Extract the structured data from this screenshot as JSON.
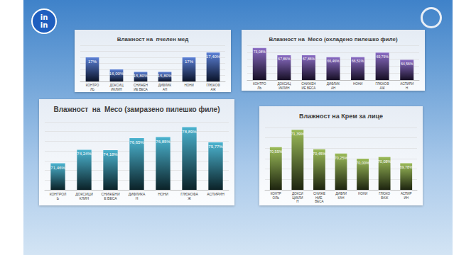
{
  "logo": [
    "in",
    "in"
  ],
  "chart_data": [
    {
      "type": "bar",
      "title": "Влажност на  пчелен мед",
      "categories": [
        "КОНТРОЛЬ",
        "ДОКСИЦИКЛИН",
        "СНИЖЕНИЕ ВЕСА",
        "ДИФЛИКАН",
        "НОНИ",
        "ГЛЮКОФАЖ"
      ],
      "values": [
        17,
        16,
        15.8,
        15.8,
        17,
        17.4
      ],
      "value_labels": [
        "17%",
        "16,00%",
        "15,80%",
        "15,80%",
        "17%",
        "17,40%"
      ],
      "color": "#5b80d6",
      "ylim": [
        15,
        18
      ],
      "yticks": [
        15,
        15.5,
        16,
        16.5,
        17,
        17.5,
        18
      ],
      "grid": true,
      "data_labels": true,
      "tick_labels": "x"
    },
    {
      "type": "bar",
      "title": "Влажност на  Месо (охладено пилешко филе)",
      "categories": [
        "КОНТРОЛЬ",
        "ДОКСИЦИКЛИН",
        "СНИЖЕНИЕ ВЕСА",
        "ДИФЛИКАН",
        "НОНИ",
        "ГЛЮКОФАЖ",
        "АСПИРИН"
      ],
      "values": [
        73.08,
        67.86,
        67.86,
        66.46,
        66.51,
        69.75,
        64.56
      ],
      "value_labels": [
        "73,08%",
        "67,86%",
        "67,86%",
        "66,46%",
        "66,51%",
        "69,75%",
        "64,56%"
      ],
      "color": "#8a6cc4",
      "ylim": [
        50,
        75
      ],
      "yticks": [
        50,
        55,
        60,
        65,
        70,
        75
      ],
      "grid": true,
      "data_labels": true,
      "tick_labels": "x"
    },
    {
      "type": "bar",
      "title": "Влажност  на  Месо (замразено пилешко филе)",
      "categories": [
        "КОНТРОЛЬ",
        "ДОКСИЦИКЛИН",
        "СНИЖЕНИЕ ВЕСА",
        "ДИФЛИКАН",
        "НОНИ",
        "ГЛЮКОФАЖ",
        "АСПИРИН"
      ],
      "values": [
        71.46,
        74.24,
        74.18,
        76.65,
        76.85,
        78.89,
        75.77
      ],
      "value_labels": [
        "71,46%",
        "74,24%",
        "74,18%",
        "76,65%",
        "76,85%",
        "78,89%",
        "75,77%"
      ],
      "color": "#4bb3cf",
      "ylim": [
        66,
        80
      ],
      "yticks": [
        66,
        68,
        70,
        72,
        74,
        76,
        78,
        80
      ],
      "grid": true,
      "data_labels": true,
      "tick_labels": "x"
    },
    {
      "type": "bar",
      "title": "Влажност на Крем за лице",
      "categories": [
        "КОНТРОЛЬ",
        "ДОКСИЦИКЛИН",
        "СНИЖЕНИЕ ВЕСА",
        "ДИФЛИКАН",
        "НОНИ",
        "ГЛЮКОФАЖ",
        "АСПИРИН"
      ],
      "values": [
        70.55,
        71.39,
        70.45,
        70.25,
        70,
        70.08,
        69.78
      ],
      "value_labels": [
        "70,55%",
        "71,39%",
        "70,45%",
        "70,25%",
        "70,00%",
        "70,08%",
        "69,78%"
      ],
      "color": "#9bbb59",
      "ylim": [
        68.5,
        71.5
      ],
      "yticks": [
        68.5,
        69,
        69.5,
        70,
        70.5,
        71,
        71.5
      ],
      "grid": true,
      "data_labels": true,
      "tick_labels": "x"
    }
  ]
}
